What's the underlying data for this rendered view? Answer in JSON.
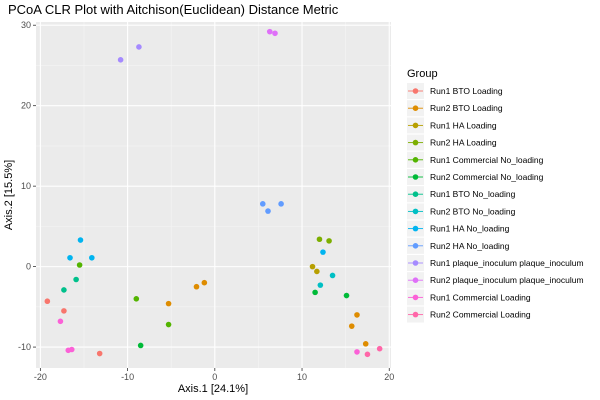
{
  "chart_data": {
    "type": "scatter",
    "title": "PCoA CLR Plot with Aitchison(Euclidean) Distance Metric",
    "xlabel": "Axis.1   [24.1%]",
    "ylabel": "Axis.2   [15.5%]",
    "xlim": [
      -20.5,
      20.2
    ],
    "ylim": [
      -12.6,
      30.4
    ],
    "xticks": [
      -20,
      -10,
      0,
      10,
      20
    ],
    "yticks": [
      -10,
      0,
      10,
      20,
      30
    ],
    "grid": true,
    "legend_position": "right",
    "legend_title": "Group",
    "series": [
      {
        "name": "Run1 BTO Loading",
        "color": "#F8766D",
        "points": [
          [
            -19.2,
            -4.3
          ],
          [
            -17.3,
            -5.5
          ],
          [
            -13.2,
            -10.8
          ]
        ]
      },
      {
        "name": "Run2 BTO Loading",
        "color": "#DE8C00",
        "points": [
          [
            -5.3,
            -4.6
          ],
          [
            -2.1,
            -2.5
          ],
          [
            -1.2,
            -2.0
          ],
          [
            15.7,
            -7.4
          ],
          [
            16.3,
            -6.0
          ],
          [
            17.3,
            -9.6
          ]
        ]
      },
      {
        "name": "Run1 HA Loading",
        "color": "#B79F00",
        "points": [
          [
            11.2,
            0.0
          ],
          [
            11.7,
            -0.6
          ]
        ]
      },
      {
        "name": "Run2 HA Loading",
        "color": "#7CAE00",
        "points": [
          [
            12.0,
            3.4
          ],
          [
            13.1,
            3.2
          ]
        ]
      },
      {
        "name": "Run1 Commercial No_loading",
        "color": "#53B400",
        "points": [
          [
            -15.5,
            0.2
          ],
          [
            -9.0,
            -4.0
          ],
          [
            -5.3,
            -7.2
          ]
        ]
      },
      {
        "name": "Run2 Commercial No_loading",
        "color": "#00BA38",
        "points": [
          [
            -8.5,
            -9.8
          ],
          [
            11.5,
            -3.2
          ],
          [
            15.1,
            -3.6
          ]
        ]
      },
      {
        "name": "Run1 BTO No_loading",
        "color": "#00C08B",
        "points": [
          [
            -17.3,
            -2.9
          ],
          [
            -15.9,
            -1.6
          ]
        ]
      },
      {
        "name": "Run2 BTO No_loading",
        "color": "#00BFC4",
        "points": [
          [
            12.1,
            -2.3
          ],
          [
            13.5,
            -1.1
          ]
        ]
      },
      {
        "name": "Run1 HA No_loading",
        "color": "#00B4F0",
        "points": [
          [
            -16.6,
            1.1
          ],
          [
            -15.4,
            3.3
          ],
          [
            -14.1,
            1.1
          ],
          [
            12.4,
            1.8
          ]
        ]
      },
      {
        "name": "Run2 HA No_loading",
        "color": "#619CFF",
        "points": [
          [
            5.5,
            7.8
          ],
          [
            6.1,
            6.9
          ],
          [
            7.6,
            7.8
          ]
        ]
      },
      {
        "name": "Run1 plaque_inoculum plaque_inoculum",
        "color": "#A58AFF",
        "points": [
          [
            -10.8,
            25.7
          ],
          [
            -8.7,
            27.3
          ]
        ]
      },
      {
        "name": "Run2 plaque_inoculum plaque_inoculum",
        "color": "#DF70F8",
        "points": [
          [
            6.3,
            29.2
          ],
          [
            6.9,
            29.0
          ]
        ]
      },
      {
        "name": "Run1 Commercial Loading",
        "color": "#FB61D7",
        "points": [
          [
            -17.7,
            -6.8
          ],
          [
            -16.8,
            -10.4
          ],
          [
            -16.4,
            -10.3
          ],
          [
            16.3,
            -10.6
          ]
        ]
      },
      {
        "name": "Run2 Commercial Loading",
        "color": "#FF66A8",
        "points": [
          [
            17.5,
            -10.9
          ],
          [
            18.9,
            -10.2
          ]
        ]
      }
    ]
  }
}
